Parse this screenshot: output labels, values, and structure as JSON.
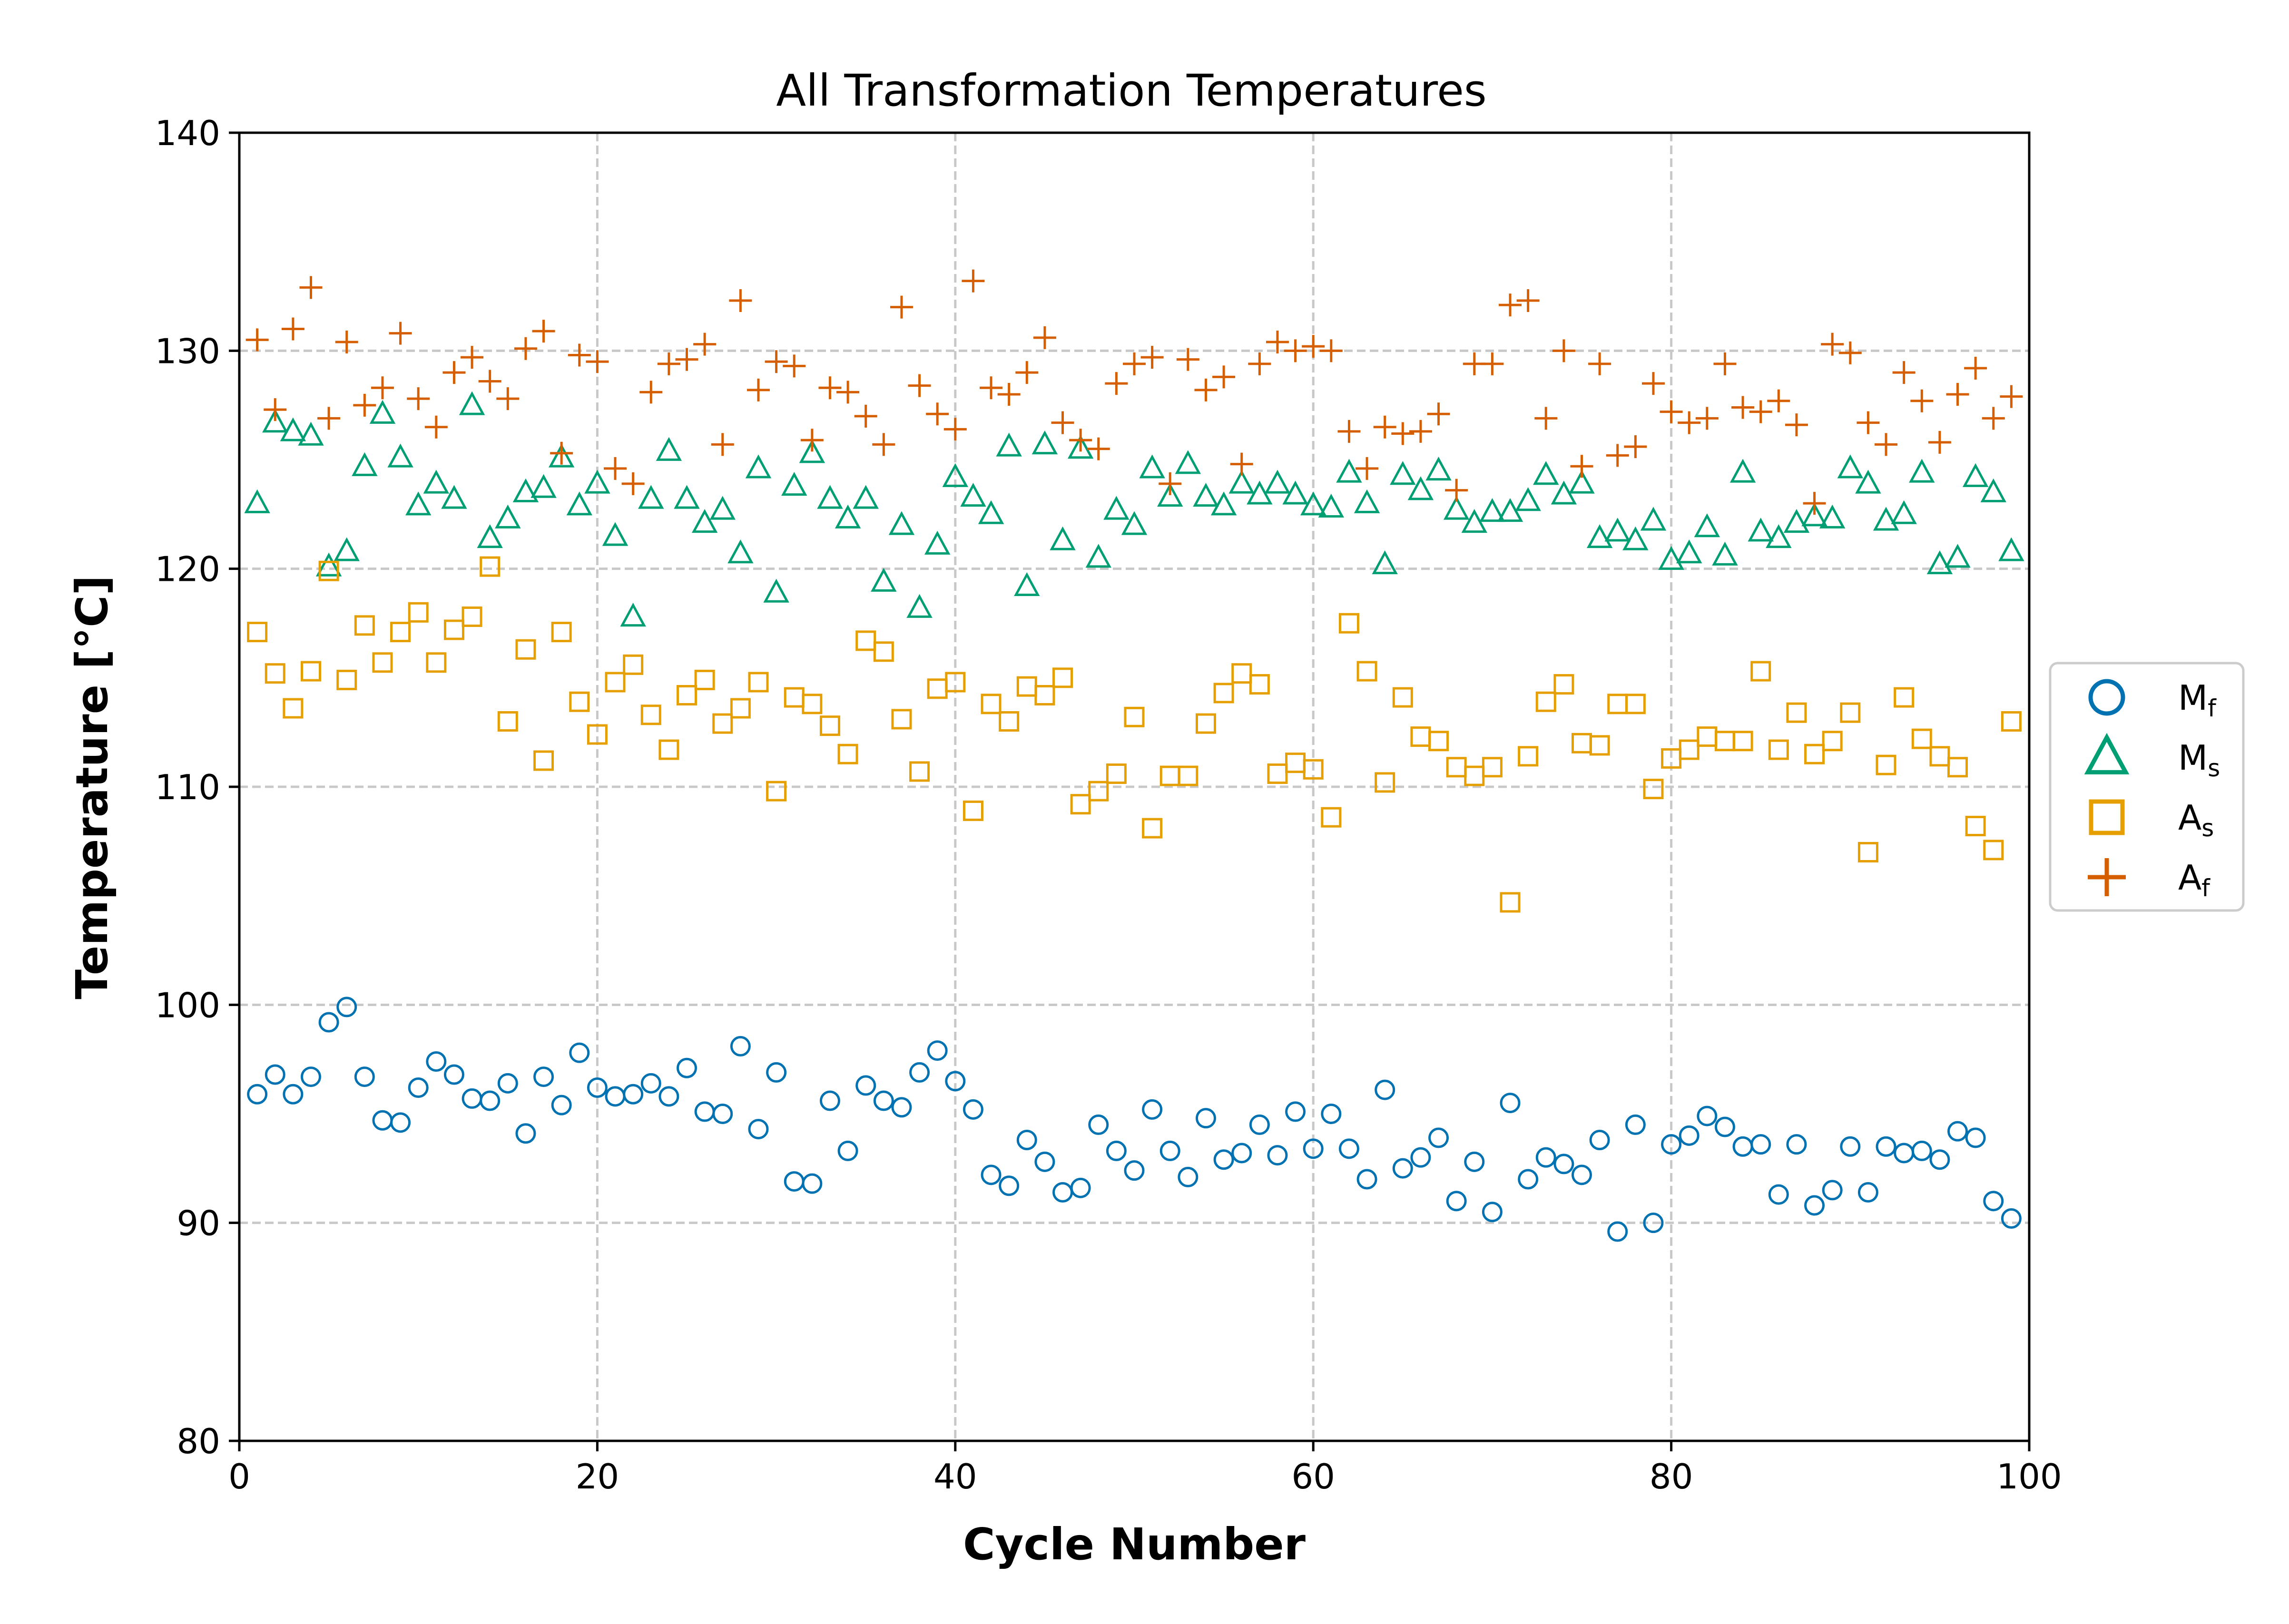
{
  "chart_data": {
    "type": "scatter",
    "title": "All Transformation Temperatures",
    "xlabel": "Cycle Number",
    "ylabel": "Temperature [°C]",
    "xlim": [
      0,
      100
    ],
    "ylim": [
      80,
      140
    ],
    "xticks": [
      0,
      20,
      40,
      60,
      80,
      100
    ],
    "yticks": [
      80,
      90,
      100,
      110,
      120,
      130,
      140
    ],
    "grid": true,
    "legend_position": "center-right",
    "series": [
      {
        "name": "Mf",
        "label_main": "M",
        "label_sub": "f",
        "marker": "circle",
        "color": "#0072B2",
        "x": [
          1,
          2,
          3,
          4,
          5,
          6,
          7,
          8,
          9,
          10,
          11,
          12,
          13,
          14,
          15,
          16,
          17,
          18,
          19,
          20,
          21,
          22,
          23,
          24,
          25,
          26,
          27,
          28,
          29,
          30,
          31,
          32,
          33,
          34,
          35,
          36,
          37,
          38,
          39,
          40,
          41,
          42,
          43,
          44,
          45,
          46,
          47,
          48,
          49,
          50,
          51,
          52,
          53,
          54,
          55,
          56,
          57,
          58,
          59,
          60,
          61,
          62,
          63,
          64,
          65,
          66,
          67,
          68,
          69,
          70,
          71,
          72,
          73,
          74,
          75,
          76,
          77,
          78,
          79,
          80,
          81,
          82,
          83,
          84,
          85,
          86,
          87,
          88,
          89,
          90,
          91,
          92,
          93,
          94,
          95,
          96,
          97,
          98,
          99
        ],
        "y": [
          95.9,
          96.8,
          95.9,
          96.7,
          99.2,
          99.9,
          96.7,
          94.7,
          94.6,
          96.2,
          97.4,
          96.8,
          95.7,
          95.6,
          96.4,
          94.1,
          96.7,
          95.4,
          97.8,
          96.2,
          95.8,
          95.9,
          96.4,
          95.8,
          97.1,
          95.1,
          95.0,
          98.1,
          94.3,
          96.9,
          91.9,
          91.8,
          95.6,
          93.3,
          96.3,
          95.6,
          95.3,
          96.9,
          97.9,
          96.5,
          95.2,
          92.2,
          91.7,
          93.8,
          92.8,
          91.4,
          91.6,
          94.5,
          93.3,
          92.4,
          95.2,
          93.3,
          92.1,
          94.8,
          92.9,
          93.2,
          94.5,
          93.1,
          95.1,
          93.4,
          95.0,
          93.4,
          92.0,
          96.1,
          92.5,
          93.0,
          93.9,
          91.0,
          92.8,
          90.5,
          95.5,
          92.0,
          93.0,
          92.7,
          92.2,
          93.8,
          89.6,
          94.5,
          90.0,
          93.6,
          94.0,
          94.9,
          94.4,
          93.5,
          93.6,
          91.3,
          93.6,
          90.8,
          91.5,
          93.5,
          91.4,
          93.5,
          93.2,
          93.3,
          92.9,
          94.2,
          93.9,
          91.0,
          90.2
        ]
      },
      {
        "name": "Ms",
        "label_main": "M",
        "label_sub": "s",
        "marker": "triangle",
        "color": "#009E73",
        "x": [
          1,
          2,
          3,
          4,
          5,
          6,
          7,
          8,
          9,
          10,
          11,
          12,
          13,
          14,
          15,
          16,
          17,
          18,
          19,
          20,
          21,
          22,
          23,
          24,
          25,
          26,
          27,
          28,
          29,
          30,
          31,
          32,
          33,
          34,
          35,
          36,
          37,
          38,
          39,
          40,
          41,
          42,
          43,
          44,
          45,
          46,
          47,
          48,
          49,
          50,
          51,
          52,
          53,
          54,
          55,
          56,
          57,
          58,
          59,
          60,
          61,
          62,
          63,
          64,
          65,
          66,
          67,
          68,
          69,
          70,
          71,
          72,
          73,
          74,
          75,
          76,
          77,
          78,
          79,
          80,
          81,
          82,
          83,
          84,
          85,
          86,
          87,
          88,
          89,
          90,
          91,
          92,
          93,
          94,
          95,
          96,
          97,
          98,
          99
        ],
        "y": [
          123.0,
          126.7,
          126.3,
          126.1,
          120.1,
          120.8,
          124.7,
          127.1,
          125.1,
          122.9,
          123.9,
          123.2,
          127.5,
          121.4,
          122.3,
          123.5,
          123.7,
          125.1,
          122.9,
          123.9,
          121.5,
          117.8,
          123.2,
          125.4,
          123.2,
          122.1,
          122.7,
          120.7,
          124.6,
          118.9,
          123.8,
          125.3,
          123.2,
          122.3,
          123.2,
          119.4,
          122.0,
          118.2,
          121.1,
          124.2,
          123.3,
          122.5,
          125.6,
          119.2,
          125.7,
          121.3,
          125.5,
          120.5,
          122.7,
          122.0,
          124.6,
          123.3,
          124.8,
          123.3,
          122.9,
          123.9,
          123.4,
          123.9,
          123.4,
          122.9,
          122.8,
          124.4,
          123.0,
          120.2,
          124.3,
          123.6,
          124.5,
          122.7,
          122.1,
          122.6,
          122.6,
          123.1,
          124.3,
          123.4,
          123.9,
          121.4,
          121.7,
          121.3,
          122.2,
          120.4,
          120.7,
          121.9,
          120.6,
          124.4,
          121.7,
          121.4,
          122.1,
          122.4,
          122.3,
          124.6,
          123.9,
          122.2,
          122.5,
          124.4,
          120.2,
          120.5,
          124.2,
          123.5,
          120.8
        ]
      },
      {
        "name": "As",
        "label_main": "A",
        "label_sub": "s",
        "marker": "square",
        "color": "#E69F00",
        "x": [
          1,
          2,
          3,
          4,
          5,
          6,
          7,
          8,
          9,
          10,
          11,
          12,
          13,
          14,
          15,
          16,
          17,
          18,
          19,
          20,
          21,
          22,
          23,
          24,
          25,
          26,
          27,
          28,
          29,
          30,
          31,
          32,
          33,
          34,
          35,
          36,
          37,
          38,
          39,
          40,
          41,
          42,
          43,
          44,
          45,
          46,
          47,
          48,
          49,
          50,
          51,
          52,
          53,
          54,
          55,
          56,
          57,
          58,
          59,
          60,
          61,
          62,
          63,
          64,
          65,
          66,
          67,
          68,
          69,
          70,
          71,
          72,
          73,
          74,
          75,
          76,
          77,
          78,
          79,
          80,
          81,
          82,
          83,
          84,
          85,
          86,
          87,
          88,
          89,
          90,
          91,
          92,
          93,
          94,
          95,
          96,
          97,
          98,
          99
        ],
        "y": [
          117.1,
          115.2,
          113.6,
          115.3,
          119.9,
          114.9,
          117.4,
          115.7,
          117.1,
          118.0,
          115.7,
          117.2,
          117.8,
          120.1,
          113.0,
          116.3,
          111.2,
          117.1,
          113.9,
          112.4,
          114.8,
          115.6,
          113.3,
          111.7,
          114.2,
          114.9,
          112.9,
          113.6,
          114.8,
          109.8,
          114.1,
          113.8,
          112.8,
          111.5,
          116.7,
          116.2,
          113.1,
          110.7,
          114.5,
          114.8,
          108.9,
          113.8,
          113.0,
          114.6,
          114.2,
          115.0,
          109.2,
          109.8,
          110.6,
          113.2,
          108.1,
          110.5,
          110.5,
          112.9,
          114.3,
          115.2,
          114.7,
          110.6,
          111.1,
          110.8,
          108.6,
          117.5,
          115.3,
          110.2,
          114.1,
          112.3,
          112.1,
          110.9,
          110.5,
          110.9,
          104.7,
          111.4,
          113.9,
          114.7,
          112.0,
          111.9,
          113.8,
          113.8,
          109.9,
          111.3,
          111.7,
          112.3,
          112.1,
          112.1,
          115.3,
          111.7,
          113.4,
          111.5,
          112.1,
          113.4,
          107.0,
          111.0,
          114.1,
          112.2,
          111.4,
          110.9,
          108.2,
          107.1,
          113.0
        ]
      },
      {
        "name": "Af",
        "label_main": "A",
        "label_sub": "f",
        "marker": "plus",
        "color": "#D55E00",
        "x": [
          1,
          2,
          3,
          4,
          5,
          6,
          7,
          8,
          9,
          10,
          11,
          12,
          13,
          14,
          15,
          16,
          17,
          18,
          19,
          20,
          21,
          22,
          23,
          24,
          25,
          26,
          27,
          28,
          29,
          30,
          31,
          32,
          33,
          34,
          35,
          36,
          37,
          38,
          39,
          40,
          41,
          42,
          43,
          44,
          45,
          46,
          47,
          48,
          49,
          50,
          51,
          52,
          53,
          54,
          55,
          56,
          57,
          58,
          59,
          60,
          61,
          62,
          63,
          64,
          65,
          66,
          67,
          68,
          69,
          70,
          71,
          72,
          73,
          74,
          75,
          76,
          77,
          78,
          79,
          80,
          81,
          82,
          83,
          84,
          85,
          86,
          87,
          88,
          89,
          90,
          91,
          92,
          93,
          94,
          95,
          96,
          97,
          98,
          99
        ],
        "y": [
          130.5,
          127.3,
          131.0,
          132.9,
          126.9,
          130.4,
          127.5,
          128.3,
          130.8,
          127.8,
          126.5,
          129.0,
          129.7,
          128.6,
          127.8,
          130.1,
          130.9,
          125.3,
          129.8,
          129.5,
          124.6,
          123.9,
          128.1,
          129.4,
          129.6,
          130.3,
          125.7,
          132.3,
          128.2,
          129.5,
          129.3,
          125.9,
          128.3,
          128.1,
          127.0,
          125.7,
          132.0,
          128.4,
          127.1,
          126.4,
          133.2,
          128.3,
          128.0,
          129.0,
          130.6,
          126.7,
          125.9,
          125.5,
          128.5,
          129.4,
          129.7,
          123.9,
          129.6,
          128.2,
          128.8,
          124.8,
          129.4,
          130.4,
          130.0,
          130.2,
          130.0,
          126.3,
          124.6,
          126.5,
          126.2,
          126.3,
          127.1,
          123.6,
          129.4,
          129.4,
          132.1,
          132.3,
          126.9,
          130.0,
          124.7,
          129.4,
          125.2,
          125.6,
          128.5,
          127.2,
          126.7,
          126.9,
          129.4,
          127.4,
          127.2,
          127.7,
          126.6,
          123.0,
          130.3,
          129.9,
          126.7,
          125.7,
          129.0,
          127.7,
          125.8,
          128.0,
          129.2,
          126.9,
          127.9
        ]
      }
    ]
  }
}
